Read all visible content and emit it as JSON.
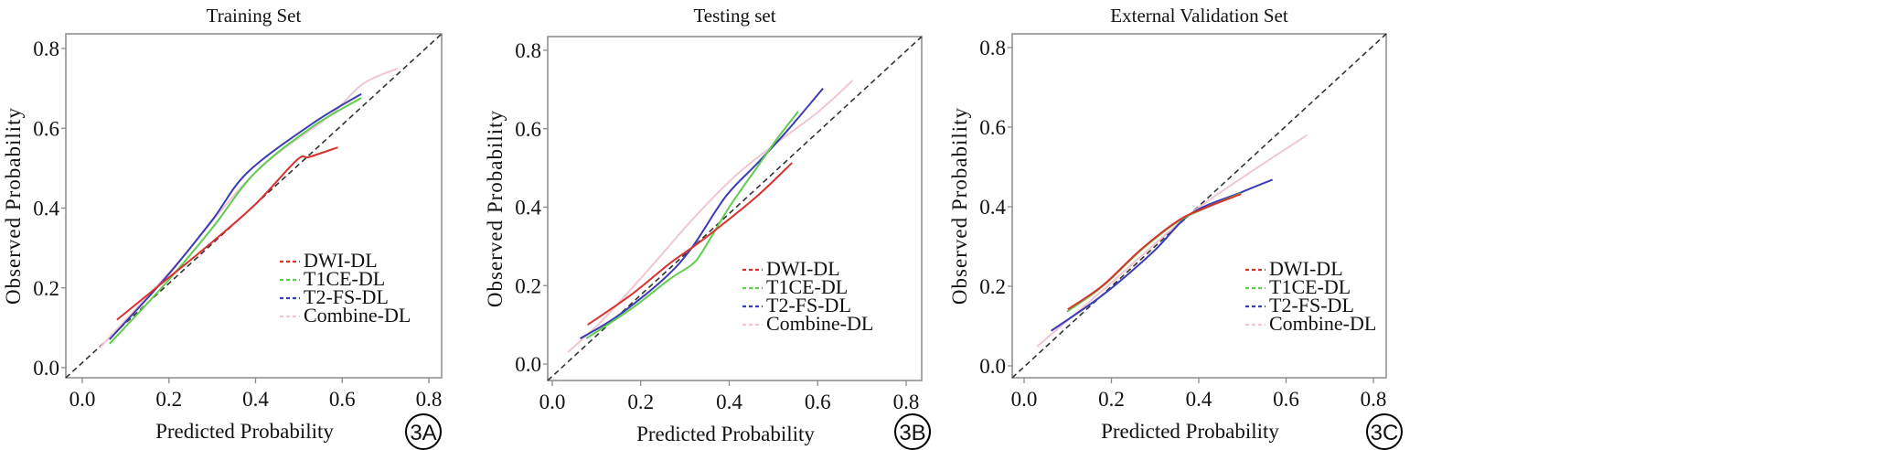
{
  "chart_data": [
    {
      "type": "line",
      "panel_label": "3A",
      "title": "Training Set",
      "xlabel": "Predicted Probability",
      "ylabel": "Observed Probability",
      "xlim": [
        0,
        0.8
      ],
      "ylim": [
        0,
        0.8
      ],
      "xticks": [
        "0.0",
        "0.2",
        "0.4",
        "0.6",
        "0.8"
      ],
      "yticks": [
        "0.0",
        "0.2",
        "0.4",
        "0.6",
        "0.8"
      ],
      "legend_position": "bottom-right",
      "reference_line": "diagonal y = x (dashed)",
      "series": [
        {
          "name": "DWI-DL",
          "color": "#d9312f",
          "x": [
            0.08,
            0.2,
            0.3,
            0.4,
            0.495,
            0.524,
            0.59
          ],
          "y": [
            0.12,
            0.226,
            0.315,
            0.41,
            0.52,
            0.528,
            0.552
          ]
        },
        {
          "name": "T1CE-DL",
          "color": "#5fcd4d",
          "x": [
            0.063,
            0.198,
            0.3,
            0.4,
            0.533,
            0.644
          ],
          "y": [
            0.06,
            0.218,
            0.35,
            0.49,
            0.605,
            0.676
          ]
        },
        {
          "name": "T2-FS-DL",
          "color": "#3a3db3",
          "x": [
            0.063,
            0.193,
            0.3,
            0.382,
            0.533,
            0.644
          ],
          "y": [
            0.071,
            0.226,
            0.37,
            0.49,
            0.613,
            0.686
          ]
        },
        {
          "name": "Combine-DL",
          "color": "#f0c6d2",
          "x": [
            0.042,
            0.21,
            0.4,
            0.57,
            0.646,
            0.728
          ],
          "y": [
            0.052,
            0.25,
            0.49,
            0.63,
            0.71,
            0.75
          ]
        }
      ]
    },
    {
      "type": "line",
      "panel_label": "3B",
      "title": "Testing set",
      "xlabel": "Predicted Probability",
      "ylabel": "Observed Probability",
      "xlim": [
        0,
        0.8
      ],
      "ylim": [
        0,
        0.8
      ],
      "xticks": [
        "0.0",
        "0.2",
        "0.4",
        "0.6",
        "0.8"
      ],
      "yticks": [
        "0.0",
        "0.2",
        "0.4",
        "0.6",
        "0.8"
      ],
      "legend_position": "bottom-right",
      "reference_line": "diagonal y = x (dashed)",
      "series": [
        {
          "name": "DWI-DL",
          "color": "#d9312f",
          "x": [
            0.08,
            0.18,
            0.266,
            0.315,
            0.367,
            0.462,
            0.542
          ],
          "y": [
            0.1,
            0.178,
            0.257,
            0.296,
            0.34,
            0.427,
            0.513
          ]
        },
        {
          "name": "T1CE-DL",
          "color": "#5fcd4d",
          "x": [
            0.077,
            0.18,
            0.266,
            0.315,
            0.34,
            0.4,
            0.462,
            0.51,
            0.556
          ],
          "y": [
            0.065,
            0.142,
            0.217,
            0.253,
            0.288,
            0.4,
            0.5,
            0.577,
            0.644
          ]
        },
        {
          "name": "T2-FS-DL",
          "color": "#3a3db3",
          "x": [
            0.063,
            0.147,
            0.252,
            0.315,
            0.392,
            0.462,
            0.532,
            0.612
          ],
          "y": [
            0.065,
            0.122,
            0.217,
            0.296,
            0.427,
            0.51,
            0.596,
            0.703
          ]
        },
        {
          "name": "Combine-DL",
          "color": "#f0c6d2",
          "x": [
            0.035,
            0.112,
            0.217,
            0.322,
            0.42,
            0.518,
            0.602,
            0.679
          ],
          "y": [
            0.03,
            0.11,
            0.24,
            0.375,
            0.486,
            0.573,
            0.644,
            0.723
          ]
        }
      ]
    },
    {
      "type": "line",
      "panel_label": "3C",
      "title": "External Validation Set",
      "xlabel": "Predicted Probability",
      "ylabel": "Observed Probability",
      "xlim": [
        0,
        0.8
      ],
      "ylim": [
        0,
        0.8
      ],
      "xticks": [
        "0.0",
        "0.2",
        "0.4",
        "0.6",
        "0.8"
      ],
      "yticks": [
        "0.0",
        "0.2",
        "0.4",
        "0.6",
        "0.8"
      ],
      "legend_position": "bottom-right",
      "reference_line": "diagonal y = x (dashed)",
      "series": [
        {
          "name": "DWI-DL",
          "color": "#d9312f",
          "x": [
            0.1,
            0.18,
            0.267,
            0.353,
            0.41,
            0.497
          ],
          "y": [
            0.142,
            0.202,
            0.292,
            0.365,
            0.395,
            0.432
          ]
        },
        {
          "name": "T1CE-DL",
          "color": "#5fcd4d",
          "x": [
            0.098,
            0.18,
            0.267,
            0.353,
            0.41,
            0.497
          ],
          "y": [
            0.136,
            0.2,
            0.29,
            0.363,
            0.394,
            0.434
          ]
        },
        {
          "name": "T2-FS-DL",
          "color": "#3a3db3",
          "x": [
            0.062,
            0.18,
            0.295,
            0.382,
            0.497,
            0.569
          ],
          "y": [
            0.088,
            0.178,
            0.286,
            0.382,
            0.436,
            0.468
          ]
        },
        {
          "name": "Combine-DL",
          "color": "#f0c6d2",
          "x": [
            0.029,
            0.18,
            0.367,
            0.497,
            0.648
          ],
          "y": [
            0.048,
            0.19,
            0.37,
            0.471,
            0.58
          ]
        }
      ]
    }
  ]
}
